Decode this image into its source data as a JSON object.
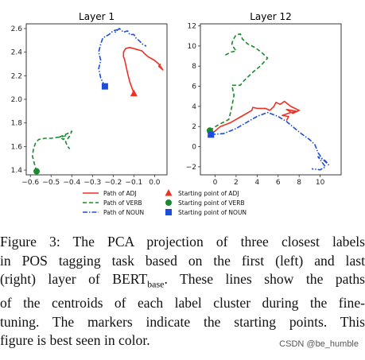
{
  "chart_data": [
    {
      "type": "line",
      "title": "Layer 1",
      "xlim": [
        -0.62,
        0.06
      ],
      "ylim": [
        1.36,
        2.64
      ],
      "xticks": [
        -0.6,
        -0.5,
        -0.4,
        -0.3,
        -0.2,
        -0.1,
        0.0
      ],
      "xtick_labels": [
        "−0.6",
        "−0.5",
        "−0.4",
        "−0.3",
        "−0.2",
        "−0.1",
        "0.0"
      ],
      "yticks": [
        1.4,
        1.6,
        1.8,
        2.0,
        2.2,
        2.4,
        2.6
      ],
      "ytick_labels": [
        "1.4",
        "1.6",
        "1.8",
        "2.0",
        "2.2",
        "2.4",
        "2.6"
      ],
      "series": [
        {
          "key": "adj",
          "x": [
            -0.1,
            -0.11,
            -0.12,
            -0.13,
            -0.14,
            -0.145,
            -0.15,
            -0.15,
            -0.14,
            -0.12,
            -0.1,
            -0.06,
            -0.05,
            -0.03,
            0.0,
            0.02,
            0.04,
            0.02,
            0.03
          ],
          "y": [
            2.05,
            2.1,
            2.15,
            2.22,
            2.3,
            2.34,
            2.36,
            2.4,
            2.43,
            2.44,
            2.43,
            2.41,
            2.39,
            2.36,
            2.33,
            2.3,
            2.25,
            2.28,
            2.3
          ]
        },
        {
          "key": "verb",
          "x": [
            -0.57,
            -0.58,
            -0.59,
            -0.585,
            -0.575,
            -0.56,
            -0.53,
            -0.5,
            -0.46,
            -0.44,
            -0.43,
            -0.46,
            -0.42,
            -0.4,
            -0.41,
            -0.43,
            -0.42,
            -0.41
          ],
          "y": [
            1.39,
            1.45,
            1.52,
            1.58,
            1.63,
            1.66,
            1.67,
            1.67,
            1.68,
            1.66,
            1.69,
            1.68,
            1.71,
            1.73,
            1.69,
            1.64,
            1.6,
            1.58
          ]
        },
        {
          "key": "noun",
          "x": [
            -0.24,
            -0.26,
            -0.27,
            -0.26,
            -0.27,
            -0.26,
            -0.25,
            -0.22,
            -0.2,
            -0.18,
            -0.19,
            -0.17,
            -0.15,
            -0.13,
            -0.12,
            -0.1,
            -0.09,
            -0.07,
            -0.06,
            -0.04
          ],
          "y": [
            2.11,
            2.18,
            2.26,
            2.33,
            2.4,
            2.47,
            2.52,
            2.55,
            2.58,
            2.59,
            2.57,
            2.6,
            2.57,
            2.58,
            2.55,
            2.55,
            2.52,
            2.49,
            2.47,
            2.45
          ]
        }
      ],
      "markers": [
        {
          "key": "adj",
          "shape": "triangle",
          "x": -0.1,
          "y": 2.05
        },
        {
          "key": "verb",
          "shape": "circle",
          "x": -0.57,
          "y": 1.39
        },
        {
          "key": "noun",
          "shape": "square",
          "x": -0.24,
          "y": 2.11
        }
      ]
    },
    {
      "type": "line",
      "title": "Layer 12",
      "xlim": [
        -1.4,
        12.0
      ],
      "ylim": [
        -2.8,
        12.2
      ],
      "xticks": [
        0,
        2,
        4,
        6,
        8,
        10
      ],
      "xtick_labels": [
        "0",
        "2",
        "4",
        "6",
        "8",
        "10"
      ],
      "yticks": [
        -2,
        0,
        2,
        4,
        6,
        8,
        10,
        12
      ],
      "ytick_labels": [
        "−2",
        "0",
        "2",
        "4",
        "6",
        "8",
        "10",
        "12"
      ],
      "series": [
        {
          "key": "adj",
          "x": [
            -0.4,
            0.5,
            1.5,
            2.5,
            3.5,
            3.6,
            4.0,
            4.8,
            5.2,
            5.6,
            5.8,
            6.2,
            6.6,
            7.2,
            7.6,
            8.0,
            7.4,
            6.8,
            7.8,
            7.2,
            6.4,
            7.0,
            6.8
          ],
          "y": [
            1.2,
            2.0,
            2.4,
            3.0,
            3.6,
            3.9,
            3.8,
            3.8,
            3.6,
            4.0,
            4.4,
            4.2,
            4.5,
            4.0,
            3.8,
            3.6,
            3.3,
            3.7,
            3.5,
            3.4,
            3.1,
            3.0,
            2.6
          ]
        },
        {
          "key": "verb",
          "x": [
            -0.5,
            0.2,
            1.3,
            1.5,
            1.8,
            1.6,
            2.4,
            2.7,
            3.1,
            3.6,
            4.3,
            5.0,
            4.4,
            3.7,
            3.1,
            2.6,
            2.4,
            2.0,
            1.7,
            1.6,
            1.8,
            2.0,
            1.5,
            0.8
          ],
          "y": [
            1.6,
            2.1,
            2.7,
            3.5,
            5.1,
            6.1,
            6.1,
            6.5,
            6.9,
            7.4,
            8.0,
            8.8,
            9.4,
            9.9,
            10.2,
            10.7,
            11.2,
            11.1,
            10.6,
            10.2,
            9.8,
            9.5,
            9.4,
            9.0
          ]
        },
        {
          "key": "noun",
          "x": [
            -0.4,
            0.8,
            2.0,
            3.0,
            4.0,
            5.0,
            6.0,
            6.8,
            7.6,
            8.2,
            9.0,
            9.5,
            9.8,
            10.2,
            10.8,
            10.5,
            9.8,
            10.5,
            10.0,
            9.2
          ],
          "y": [
            1.2,
            1.3,
            1.8,
            2.4,
            3.0,
            3.4,
            3.0,
            2.5,
            1.8,
            1.3,
            0.7,
            0.2,
            -0.6,
            -1.2,
            -1.8,
            -1.4,
            -1.0,
            -2.0,
            -2.3,
            -2.2
          ]
        }
      ],
      "markers": [
        {
          "key": "adj",
          "shape": "triangle",
          "x": -0.4,
          "y": 1.2
        },
        {
          "key": "verb",
          "shape": "circle",
          "x": -0.5,
          "y": 1.6
        },
        {
          "key": "noun",
          "shape": "square",
          "x": -0.4,
          "y": 1.2
        }
      ]
    }
  ],
  "legend": {
    "paths": [
      {
        "key": "adj",
        "label": "Path of ADJ"
      },
      {
        "key": "verb",
        "label": "Path of VERB"
      },
      {
        "key": "noun",
        "label": "Path of NOUN"
      }
    ],
    "starts": [
      {
        "key": "adj",
        "shape": "triangle",
        "label": "Starting point of ADJ"
      },
      {
        "key": "verb",
        "shape": "circle",
        "label": "Starting point of VERB"
      },
      {
        "key": "noun",
        "shape": "square",
        "label": "Starting point of NOUN"
      }
    ]
  },
  "styles": {
    "adj": {
      "color": "#ee3124",
      "dash": ""
    },
    "verb": {
      "color": "#1a8a2a",
      "dash": "5,3"
    },
    "noun": {
      "color": "#1f4ddb",
      "dash": "6,2,1.5,2"
    }
  },
  "caption": {
    "lines": [
      "Figure 3:  The PCA projection of three closest labels",
      "in POS tagging task based on the first (left) and last",
      "(right) layer of BERT",
      "of the centroids of each label cluster during the fine-",
      "tuning.  The markers indicate the starting points.  This",
      "figure is best seen in color."
    ],
    "subscript": "base",
    "line3_suffix": ".  These lines show the paths"
  },
  "watermark": "CSDN @be_humble"
}
